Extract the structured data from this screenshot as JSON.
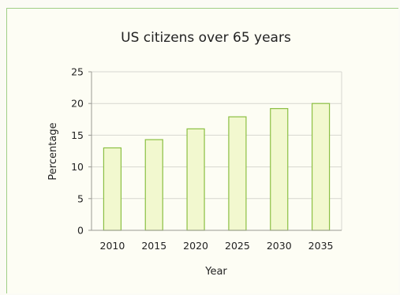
{
  "chart_data": {
    "type": "bar",
    "title": "US citizens over 65 years",
    "xlabel": "Year",
    "ylabel": "Percentage",
    "categories": [
      "2010",
      "2015",
      "2020",
      "2025",
      "2030",
      "2035"
    ],
    "values": [
      13,
      14.3,
      16,
      17.9,
      19.2,
      20
    ],
    "ylim": [
      0,
      25
    ],
    "yticks": [
      0,
      5,
      10,
      15,
      20,
      25
    ],
    "grid": true,
    "colors": {
      "bar_fill": "#f2f8cf",
      "bar_stroke": "#8bbf43",
      "grid": "#d7d7cf",
      "axis": "#9a9a94",
      "frame_accent": "#9fcf86"
    }
  }
}
